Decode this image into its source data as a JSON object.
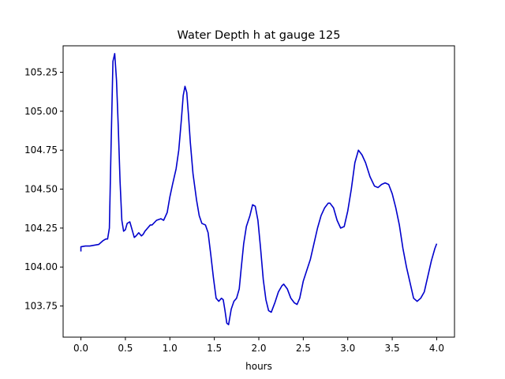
{
  "chart_data": {
    "type": "line",
    "title": "Water Depth h at gauge 125",
    "xlabel": "hours",
    "ylabel": "",
    "xlim": [
      -0.2,
      4.2
    ],
    "ylim": [
      103.55,
      105.42
    ],
    "xticks": [
      0.0,
      0.5,
      1.0,
      1.5,
      2.0,
      2.5,
      3.0,
      3.5,
      4.0
    ],
    "xtick_labels": [
      "0.0",
      "0.5",
      "1.0",
      "1.5",
      "2.0",
      "2.5",
      "3.0",
      "3.5",
      "4.0"
    ],
    "yticks": [
      103.75,
      104.0,
      104.25,
      104.5,
      104.75,
      105.0,
      105.25
    ],
    "ytick_labels": [
      "103.75",
      "104.00",
      "104.25",
      "104.50",
      "104.75",
      "105.00",
      "105.25"
    ],
    "grid": false,
    "series": [
      {
        "color": "#0000cc",
        "x": [
          0.0,
          0.0,
          0.05,
          0.1,
          0.15,
          0.2,
          0.25,
          0.28,
          0.3,
          0.32,
          0.34,
          0.36,
          0.38,
          0.4,
          0.42,
          0.44,
          0.46,
          0.48,
          0.5,
          0.52,
          0.55,
          0.58,
          0.6,
          0.62,
          0.65,
          0.68,
          0.7,
          0.72,
          0.75,
          0.78,
          0.8,
          0.85,
          0.9,
          0.93,
          0.97,
          1.0,
          1.03,
          1.07,
          1.1,
          1.13,
          1.15,
          1.17,
          1.19,
          1.21,
          1.23,
          1.26,
          1.3,
          1.33,
          1.36,
          1.4,
          1.43,
          1.46,
          1.49,
          1.52,
          1.55,
          1.58,
          1.6,
          1.62,
          1.64,
          1.66,
          1.69,
          1.72,
          1.75,
          1.78,
          1.8,
          1.83,
          1.86,
          1.9,
          1.93,
          1.96,
          1.99,
          2.02,
          2.05,
          2.08,
          2.11,
          2.14,
          2.18,
          2.22,
          2.26,
          2.28,
          2.32,
          2.36,
          2.4,
          2.43,
          2.46,
          2.5,
          2.54,
          2.58,
          2.62,
          2.66,
          2.7,
          2.74,
          2.78,
          2.8,
          2.84,
          2.88,
          2.92,
          2.96,
          3.0,
          3.04,
          3.08,
          3.12,
          3.16,
          3.2,
          3.25,
          3.3,
          3.34,
          3.38,
          3.42,
          3.46,
          3.5,
          3.54,
          3.58,
          3.62,
          3.66,
          3.7,
          3.74,
          3.78,
          3.82,
          3.86,
          3.9,
          3.94,
          3.98,
          4.0
        ],
        "y": [
          104.1,
          104.13,
          104.135,
          104.135,
          104.14,
          104.145,
          104.17,
          104.18,
          104.18,
          104.25,
          104.8,
          105.32,
          105.37,
          105.2,
          104.9,
          104.55,
          104.3,
          104.23,
          104.24,
          104.28,
          104.29,
          104.23,
          104.19,
          104.2,
          104.22,
          104.2,
          104.21,
          104.23,
          104.25,
          104.27,
          104.27,
          104.3,
          104.31,
          104.3,
          104.35,
          104.45,
          104.53,
          104.63,
          104.75,
          104.95,
          105.1,
          105.16,
          105.12,
          104.97,
          104.8,
          104.6,
          104.43,
          104.33,
          104.28,
          104.27,
          104.22,
          104.08,
          103.93,
          103.8,
          103.78,
          103.8,
          103.79,
          103.72,
          103.64,
          103.63,
          103.73,
          103.78,
          103.8,
          103.86,
          103.98,
          104.15,
          104.26,
          104.33,
          104.4,
          104.39,
          104.3,
          104.12,
          103.92,
          103.79,
          103.72,
          103.71,
          103.77,
          103.84,
          103.88,
          103.89,
          103.86,
          103.8,
          103.77,
          103.76,
          103.8,
          103.91,
          103.98,
          104.05,
          104.15,
          104.25,
          104.33,
          104.38,
          104.41,
          104.41,
          104.38,
          104.3,
          104.25,
          104.26,
          104.36,
          104.5,
          104.67,
          104.75,
          104.72,
          104.67,
          104.58,
          104.52,
          104.51,
          104.53,
          104.54,
          104.53,
          104.47,
          104.38,
          104.27,
          104.12,
          104.0,
          103.9,
          103.8,
          103.78,
          103.8,
          103.84,
          103.94,
          104.04,
          104.12,
          104.15
        ]
      }
    ]
  }
}
